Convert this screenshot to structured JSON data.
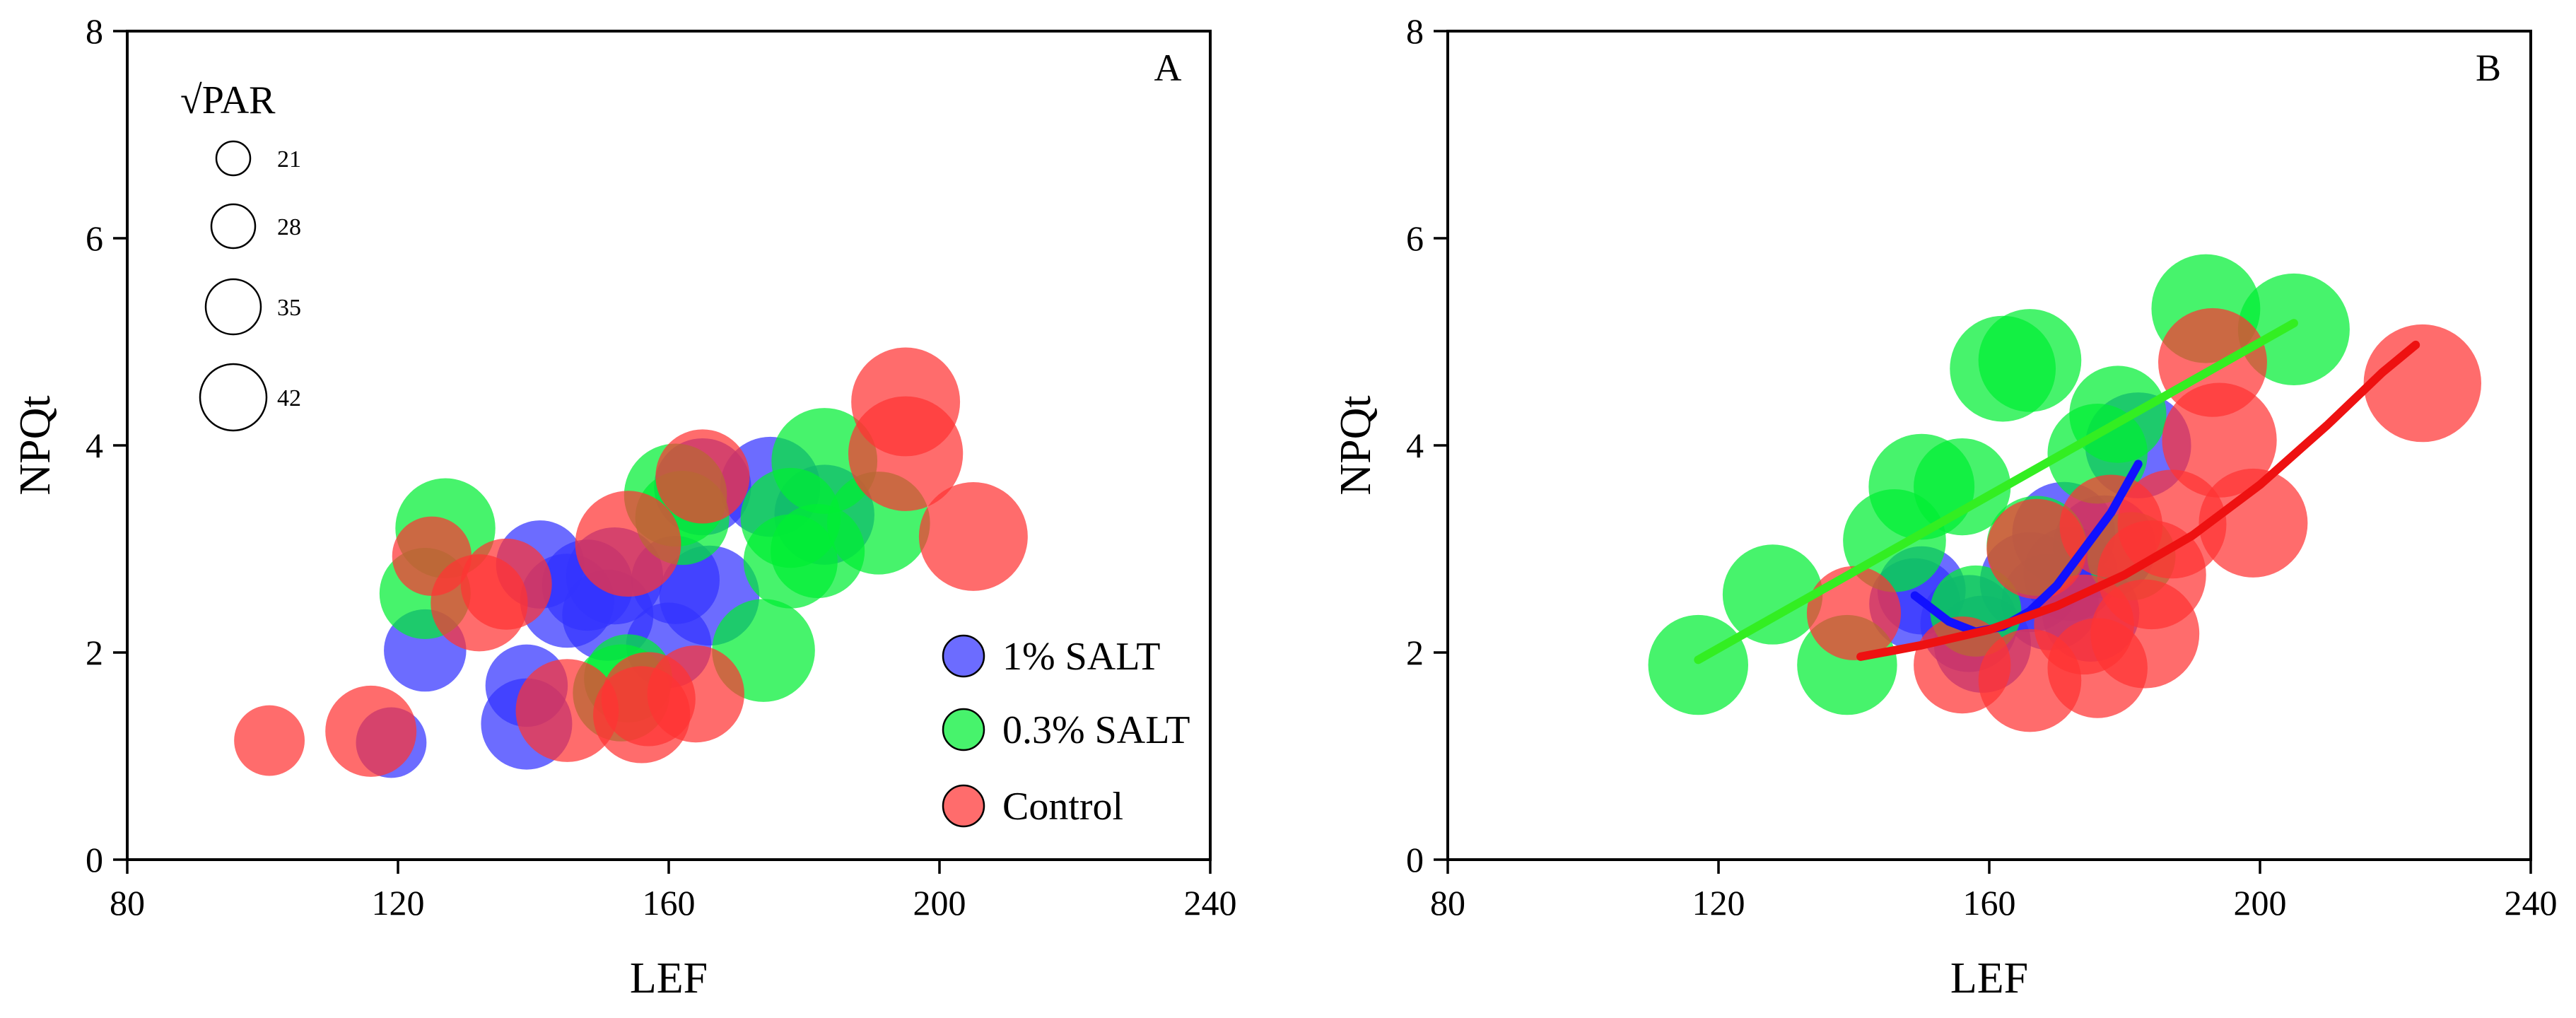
{
  "chart_data": [
    {
      "type": "scatter",
      "panel": "A",
      "xlabel": "LEF",
      "ylabel": "NPQt",
      "xlim": [
        80,
        240
      ],
      "ylim": [
        0,
        8
      ],
      "xticks": [
        80,
        120,
        160,
        200,
        240
      ],
      "yticks": [
        0,
        2,
        4,
        6,
        8
      ],
      "size_legend": {
        "title": "√PAR",
        "values": [
          21,
          28,
          35,
          42
        ],
        "labels": [
          "21",
          "28",
          "35",
          "42"
        ]
      },
      "legend": [
        "1% SALT",
        "0.3% SALT",
        "Control"
      ],
      "series": [
        {
          "name": "1% SALT",
          "color": "#3333ff",
          "points": [
            {
              "x": 119,
              "y": 1.13,
              "s": 24
            },
            {
              "x": 124,
              "y": 2.02,
              "s": 28
            },
            {
              "x": 139,
              "y": 1.31,
              "s": 31
            },
            {
              "x": 139,
              "y": 1.68,
              "s": 28
            },
            {
              "x": 141,
              "y": 2.85,
              "s": 30
            },
            {
              "x": 145,
              "y": 2.5,
              "s": 32
            },
            {
              "x": 148,
              "y": 2.65,
              "s": 31
            },
            {
              "x": 151,
              "y": 2.36,
              "s": 31
            },
            {
              "x": 152,
              "y": 2.74,
              "s": 33
            },
            {
              "x": 160,
              "y": 2.07,
              "s": 29
            },
            {
              "x": 161,
              "y": 2.7,
              "s": 30
            },
            {
              "x": 165,
              "y": 3.6,
              "s": 33
            },
            {
              "x": 166,
              "y": 2.55,
              "s": 34
            },
            {
              "x": 175,
              "y": 3.6,
              "s": 34
            },
            {
              "x": 183,
              "y": 3.33,
              "s": 34
            }
          ]
        },
        {
          "name": "0.3% SALT",
          "color": "#00ee33",
          "points": [
            {
              "x": 124,
              "y": 2.57,
              "s": 31
            },
            {
              "x": 127,
              "y": 3.2,
              "s": 34
            },
            {
              "x": 153,
              "y": 1.61,
              "s": 33
            },
            {
              "x": 154,
              "y": 1.75,
              "s": 30
            },
            {
              "x": 161,
              "y": 3.52,
              "s": 35
            },
            {
              "x": 162,
              "y": 3.3,
              "s": 32
            },
            {
              "x": 174,
              "y": 2.02,
              "s": 35
            },
            {
              "x": 178,
              "y": 2.88,
              "s": 32
            },
            {
              "x": 178,
              "y": 3.3,
              "s": 34
            },
            {
              "x": 182,
              "y": 2.98,
              "s": 32
            },
            {
              "x": 183,
              "y": 3.85,
              "s": 36
            },
            {
              "x": 191,
              "y": 3.25,
              "s": 35
            }
          ]
        },
        {
          "name": "Control",
          "color": "#ff3333",
          "points": [
            {
              "x": 101,
              "y": 1.15,
              "s": 24
            },
            {
              "x": 116,
              "y": 1.24,
              "s": 31
            },
            {
              "x": 125,
              "y": 2.93,
              "s": 27
            },
            {
              "x": 132,
              "y": 2.48,
              "s": 33
            },
            {
              "x": 136,
              "y": 2.66,
              "s": 31
            },
            {
              "x": 145,
              "y": 1.44,
              "s": 35
            },
            {
              "x": 154,
              "y": 3.05,
              "s": 36
            },
            {
              "x": 156,
              "y": 1.4,
              "s": 33
            },
            {
              "x": 157,
              "y": 1.55,
              "s": 32
            },
            {
              "x": 164,
              "y": 1.6,
              "s": 33
            },
            {
              "x": 165,
              "y": 3.7,
              "s": 32
            },
            {
              "x": 195,
              "y": 4.42,
              "s": 37
            },
            {
              "x": 195,
              "y": 3.92,
              "s": 39
            },
            {
              "x": 205,
              "y": 3.12,
              "s": 37
            }
          ]
        }
      ]
    },
    {
      "type": "scatter",
      "panel": "B",
      "xlabel": "LEF",
      "ylabel": "NPQt",
      "xlim": [
        80,
        240
      ],
      "ylim": [
        0,
        8
      ],
      "xticks": [
        80,
        120,
        160,
        200,
        240
      ],
      "yticks": [
        0,
        2,
        4,
        6,
        8
      ],
      "series": [
        {
          "name": "1% SALT",
          "color": "#3333ff",
          "points": [
            {
              "x": 149,
              "y": 2.47,
              "s": 31
            },
            {
              "x": 150,
              "y": 2.6,
              "s": 30
            },
            {
              "x": 157,
              "y": 2.28,
              "s": 33
            },
            {
              "x": 159,
              "y": 2.08,
              "s": 33
            },
            {
              "x": 166,
              "y": 2.68,
              "s": 34
            },
            {
              "x": 169,
              "y": 2.49,
              "s": 33
            },
            {
              "x": 171,
              "y": 3.15,
              "s": 35
            },
            {
              "x": 172,
              "y": 2.76,
              "s": 32
            },
            {
              "x": 175,
              "y": 2.38,
              "s": 33
            },
            {
              "x": 177,
              "y": 3.02,
              "s": 35
            },
            {
              "x": 182,
              "y": 4.0,
              "s": 36
            }
          ],
          "fit": [
            [
              149,
              2.55
            ],
            [
              154,
              2.3
            ],
            [
              158,
              2.2
            ],
            [
              162,
              2.25
            ],
            [
              166,
              2.4
            ],
            [
              170,
              2.65
            ],
            [
              174,
              3.0
            ],
            [
              178,
              3.35
            ],
            [
              182,
              3.82
            ]
          ]
        },
        {
          "name": "0.3% SALT",
          "color": "#00ee33",
          "points": [
            {
              "x": 117,
              "y": 1.88,
              "s": 34
            },
            {
              "x": 128,
              "y": 2.56,
              "s": 34
            },
            {
              "x": 139,
              "y": 1.88,
              "s": 34
            },
            {
              "x": 146,
              "y": 3.08,
              "s": 35
            },
            {
              "x": 150,
              "y": 3.6,
              "s": 36
            },
            {
              "x": 156,
              "y": 3.6,
              "s": 33
            },
            {
              "x": 158,
              "y": 2.4,
              "s": 31
            },
            {
              "x": 162,
              "y": 4.74,
              "s": 36
            },
            {
              "x": 166,
              "y": 4.82,
              "s": 35
            },
            {
              "x": 167,
              "y": 3.03,
              "s": 34
            },
            {
              "x": 176,
              "y": 3.92,
              "s": 34
            },
            {
              "x": 179,
              "y": 4.3,
              "s": 33
            },
            {
              "x": 181,
              "y": 2.93,
              "s": 30
            },
            {
              "x": 192,
              "y": 5.32,
              "s": 37
            },
            {
              "x": 205,
              "y": 5.12,
              "s": 38
            }
          ],
          "fit": [
            [
              117,
              1.93
            ],
            [
              205,
              5.18
            ]
          ]
        },
        {
          "name": "Control",
          "color": "#ff3333",
          "points": [
            {
              "x": 140,
              "y": 2.38,
              "s": 32
            },
            {
              "x": 156,
              "y": 1.88,
              "s": 33
            },
            {
              "x": 166,
              "y": 1.73,
              "s": 35
            },
            {
              "x": 167,
              "y": 3.0,
              "s": 34
            },
            {
              "x": 174,
              "y": 2.27,
              "s": 34
            },
            {
              "x": 176,
              "y": 1.85,
              "s": 34
            },
            {
              "x": 178,
              "y": 3.22,
              "s": 35
            },
            {
              "x": 183,
              "y": 2.18,
              "s": 37
            },
            {
              "x": 184,
              "y": 2.75,
              "s": 37
            },
            {
              "x": 187,
              "y": 3.24,
              "s": 37
            },
            {
              "x": 193,
              "y": 4.8,
              "s": 37
            },
            {
              "x": 194,
              "y": 4.05,
              "s": 39
            },
            {
              "x": 199,
              "y": 3.25,
              "s": 37
            },
            {
              "x": 224,
              "y": 4.6,
              "s": 40
            }
          ],
          "fit": [
            [
              141,
              1.96
            ],
            [
              150,
              2.07
            ],
            [
              160,
              2.22
            ],
            [
              170,
              2.45
            ],
            [
              180,
              2.75
            ],
            [
              190,
              3.13
            ],
            [
              200,
              3.62
            ],
            [
              210,
              4.2
            ],
            [
              218,
              4.7
            ],
            [
              223,
              4.97
            ]
          ]
        }
      ]
    }
  ]
}
